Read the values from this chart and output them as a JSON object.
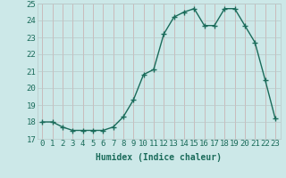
{
  "x": [
    0,
    1,
    2,
    3,
    4,
    5,
    6,
    7,
    8,
    9,
    10,
    11,
    12,
    13,
    14,
    15,
    16,
    17,
    18,
    19,
    20,
    21,
    22,
    23
  ],
  "y": [
    18.0,
    18.0,
    17.7,
    17.5,
    17.5,
    17.5,
    17.5,
    17.7,
    18.3,
    19.3,
    20.8,
    21.1,
    23.2,
    24.2,
    24.5,
    24.7,
    23.7,
    23.7,
    24.7,
    24.7,
    23.7,
    22.7,
    20.5,
    18.2
  ],
  "line_color": "#1a6b5a",
  "marker": "+",
  "marker_size": 4,
  "linewidth": 1.0,
  "xlabel": "Humidex (Indice chaleur)",
  "ylim": [
    17,
    25
  ],
  "xlim": [
    -0.5,
    23.5
  ],
  "yticks": [
    17,
    18,
    19,
    20,
    21,
    22,
    23,
    24,
    25
  ],
  "xticks": [
    0,
    1,
    2,
    3,
    4,
    5,
    6,
    7,
    8,
    9,
    10,
    11,
    12,
    13,
    14,
    15,
    16,
    17,
    18,
    19,
    20,
    21,
    22,
    23
  ],
  "bg_color": "#cce8e8",
  "grid_color_v": "#c8aaaa",
  "grid_color_h": "#b8c8c8",
  "xlabel_fontsize": 7,
  "tick_fontsize": 6.5
}
